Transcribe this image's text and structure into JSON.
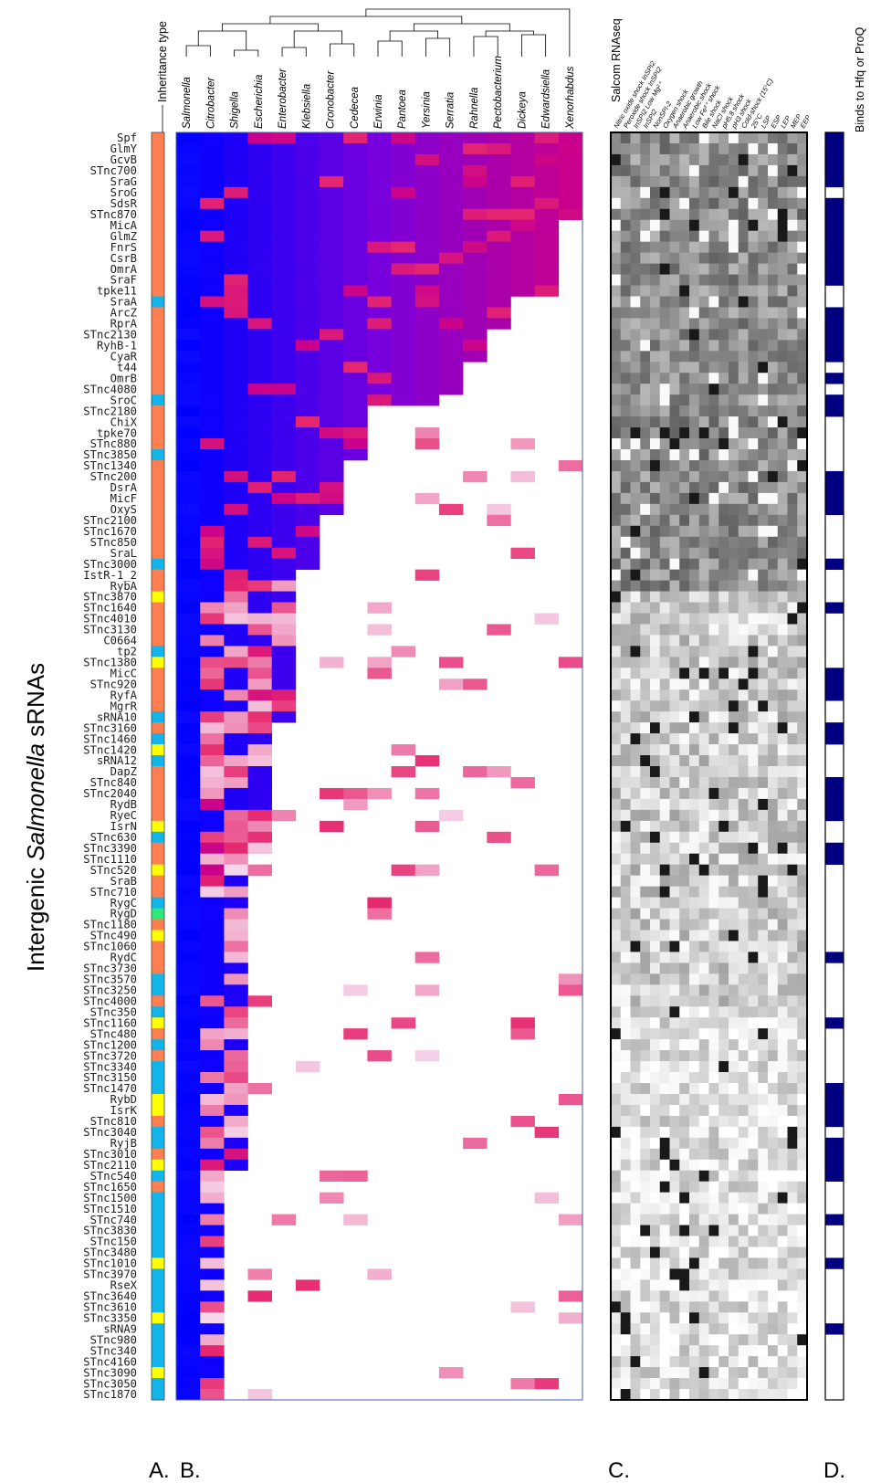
{
  "chart_data": {
    "type": "heatmap",
    "title": "",
    "ylabel": "Intergenic Salmonella sRNAs",
    "ylabel_parts": [
      "Intergenic ",
      "Salmonella",
      " sRNAs"
    ],
    "panel_labels": [
      "A.",
      "B.",
      "C.",
      "D."
    ],
    "panel_titles": {
      "inheritance": "Inheritance type",
      "salcom": "Salcom RNAseq",
      "binds": "Binds to Hfq or ProQ"
    },
    "srnas": [
      "Spf",
      "GlmY",
      "GcvB",
      "STnc700",
      "SraG",
      "SroG",
      "SdsR",
      "STnc870",
      "MicA",
      "GlmZ",
      "FnrS",
      "CsrB",
      "OmrA",
      "SraF",
      "tpke11",
      "SraA",
      "ArcZ",
      "RprA",
      "STnc2130",
      "RyhB-1",
      "CyaR",
      "t44",
      "OmrB",
      "STnc4080",
      "SroC",
      "STnc2180",
      "ChiX",
      "tpke70",
      "STnc880",
      "STnc3850",
      "STnc1340",
      "STnc200",
      "DsrA",
      "MicF",
      "OxyS",
      "STnc2100",
      "STnc1670",
      "STnc850",
      "SraL",
      "STnc3000",
      "IstR-1_2",
      "RybA",
      "STnc3870",
      "STnc1640",
      "STnc4010",
      "STnc3130",
      "C0664",
      "tp2",
      "STnc1380",
      "MicC",
      "STnc920",
      "RyfA",
      "MgrR",
      "sRNA10",
      "STnc3160",
      "STnc1460",
      "STnc1420",
      "sRNA12",
      "DapZ",
      "STnc840",
      "STnc2040",
      "RydB",
      "RyeC",
      "IsrN",
      "STnc630",
      "STnc3390",
      "STnc1110",
      "STnc520",
      "SraB",
      "STnc710",
      "RygC",
      "RygD",
      "STnc1180",
      "STnc490",
      "STnc1060",
      "RydC",
      "STnc3730",
      "STnc3570",
      "STnc3250",
      "STnc4000",
      "STnc350",
      "STnc1160",
      "STnc480",
      "STnc1200",
      "STnc3720",
      "STnc3340",
      "STnc3150",
      "STnc1470",
      "RybD",
      "IsrK",
      "STnc810",
      "STnc3040",
      "RyjB",
      "STnc3010",
      "STnc2110",
      "STnc540",
      "STnc1650",
      "STnc1500",
      "STnc1510",
      "STnc740",
      "STnc3830",
      "STnc150",
      "STnc3480",
      "STnc1010",
      "STnc3970",
      "RseX",
      "STnc3640",
      "STnc3610",
      "STnc3350",
      "sRNA9",
      "STnc980",
      "STnc340",
      "STnc4160",
      "STnc3090",
      "STnc3050",
      "STnc1870"
    ],
    "species": [
      "Salmonella",
      "Citrobacter",
      "Shigella",
      "Escherichia",
      "Enterobacter",
      "Klebsiella",
      "Cronobacter",
      "Cedecea",
      "Erwinia",
      "Pantoea",
      "Yersinia",
      "Serratia",
      "Rahnella",
      "Pectobacterium",
      "Dickeya",
      "Edwardsiella",
      "Xenorhabdus"
    ],
    "species_italic": true,
    "conditions": [
      "Nitric oxide shock InSPI2",
      "Peroxide shock InSPI2",
      "InSPI2 Low Mg²⁺",
      "InSPI2",
      "NonSPI-2",
      "Oxygen shock",
      "Anaerobic growth",
      "Anaerobic shock",
      "Low Fe²⁺ shock",
      "Bile shock",
      "NaCl shock",
      "pH5.8 shock",
      "pH3 shock",
      "Cold-shock (15°C)",
      "25°C",
      "LSP",
      "ESP",
      "LEP",
      "MEP",
      "EEP"
    ],
    "inheritance_colors": {
      "orange": "#ff7f50",
      "blue": "#12b5ea",
      "yellow": "#ffff00",
      "green": "#2ee87a"
    },
    "inheritance_nonorange": {
      "15": "blue",
      "24": "blue",
      "29": "blue",
      "39": "blue",
      "42": "yellow",
      "47": "blue",
      "48": "yellow",
      "53": "blue",
      "55": "blue",
      "56": "yellow",
      "57": "blue",
      "63": "yellow",
      "64": "blue",
      "67": "yellow",
      "70": "blue",
      "71": "green",
      "73": "yellow",
      "77": "blue",
      "78": "blue",
      "80": "blue",
      "81": "yellow",
      "83": "blue",
      "85": "blue",
      "86": "blue",
      "87": "blue",
      "88": "yellow",
      "89": "yellow",
      "91": "blue",
      "92": "blue",
      "94": "yellow",
      "95": "blue",
      "97": "blue",
      "98": "blue",
      "99": "blue",
      "100": "blue",
      "101": "blue",
      "102": "blue",
      "103": "yellow",
      "104": "blue",
      "105": "blue",
      "106": "blue",
      "107": "blue",
      "108": "yellow",
      "109": "blue",
      "110": "blue",
      "111": "blue",
      "112": "blue",
      "113": "yellow",
      "114": "blue",
      "115": "blue",
      "116": "yellow"
    },
    "conservation_color_scale": [
      "#0000ff",
      "#6a00e0",
      "#a000b8",
      "#e0006e",
      "#ff00ff"
    ],
    "expression_color_scale": [
      "#ffffff",
      "#000000"
    ],
    "binds_color": "#000080",
    "binds_hfq_or_proq": [
      1,
      1,
      1,
      1,
      1,
      0,
      1,
      1,
      1,
      1,
      1,
      1,
      1,
      1,
      0,
      0,
      1,
      1,
      1,
      1,
      1,
      0,
      1,
      0,
      1,
      1,
      0,
      0,
      0,
      0,
      0,
      1,
      1,
      1,
      1,
      0,
      0,
      0,
      0,
      1,
      0,
      0,
      0,
      1,
      0,
      0,
      0,
      0,
      0,
      1,
      1,
      1,
      0,
      0,
      1,
      1,
      0,
      0,
      0,
      1,
      1,
      1,
      1,
      0,
      0,
      1,
      1,
      0,
      0,
      0,
      0,
      0,
      0,
      0,
      0,
      1,
      0,
      0,
      0,
      0,
      0,
      1,
      0,
      0,
      0,
      0,
      0,
      1,
      1,
      1,
      1,
      0,
      1,
      1,
      1,
      1,
      0,
      0,
      0,
      1,
      0,
      0,
      0,
      1,
      0,
      0,
      0,
      0,
      0,
      1,
      0,
      0,
      0,
      0,
      0,
      0
    ],
    "legend": null,
    "grid": true
  }
}
